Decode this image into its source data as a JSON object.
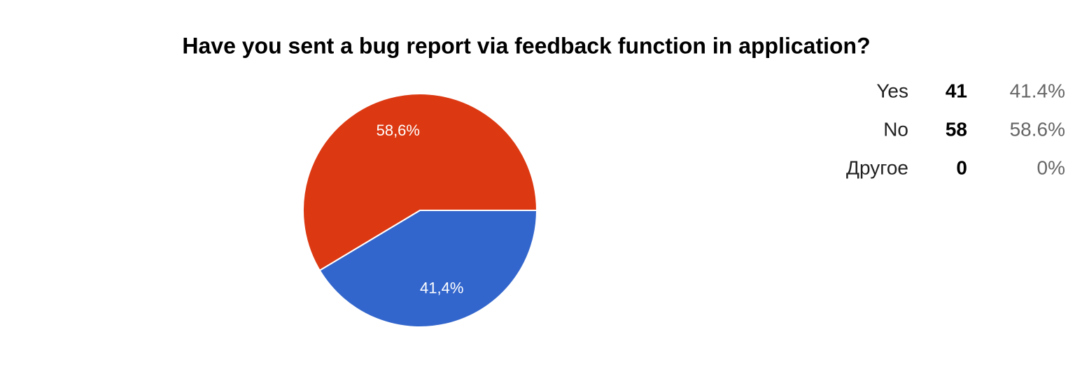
{
  "chart_data": {
    "type": "pie",
    "title": "Have you sent a bug report via feedback function in application?",
    "categories": [
      "Yes",
      "No",
      "Другое"
    ],
    "values": [
      41.4,
      58.6,
      0
    ],
    "value_labels": [
      "41,4%",
      "58,6%",
      null
    ],
    "colors": [
      "#3366cc",
      "#dc3912",
      "#ff9900"
    ],
    "counts": [
      41,
      58,
      0
    ],
    "percent_labels": [
      "41.4%",
      "58.6%",
      "0%"
    ]
  }
}
